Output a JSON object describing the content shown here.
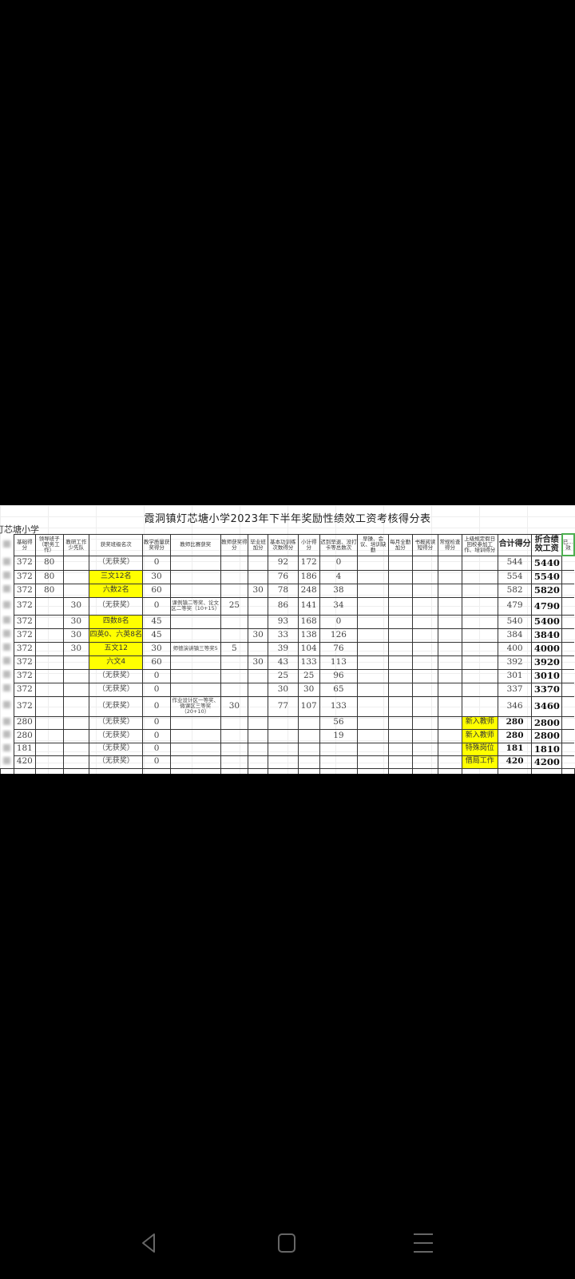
{
  "sheet": {
    "title": "霞洞镇灯芯塘小学2023年下半年奖励性绩效工资考核得分表",
    "school": "灯芯塘小学",
    "headers": [
      "",
      "基础得分",
      "领导班子（职务工作）",
      "教研工作少先队",
      "获奖班级名次",
      "教学质量获奖得分",
      "教师比赛获奖",
      "教师获奖得分",
      "毕业班加分",
      "基本功训练次数得分",
      "小计得分",
      "迟到早退、没打卡等总数次",
      "早操、会议、培训缺勤",
      "每月全勤加分",
      "书报阅读短得分",
      "常规检查得分",
      "上级规定假日回校参加工作、培训得分",
      "合计得分",
      "折合绩效工资",
      "已…效"
    ],
    "highlight_color": "#ffff00",
    "rows": [
      [
        "",
        "372",
        "80",
        "",
        "（无获奖）",
        "0",
        "",
        "",
        "",
        "92",
        "172",
        "0",
        "",
        "",
        "",
        "",
        "",
        "544",
        "5440",
        ""
      ],
      [
        "",
        "372",
        "80",
        "",
        "三文12名",
        "30",
        "",
        "",
        "",
        "76",
        "186",
        "4",
        "",
        "",
        "",
        "",
        "",
        "554",
        "5540",
        ""
      ],
      [
        "",
        "372",
        "80",
        "",
        "六数2名",
        "60",
        "",
        "",
        "30",
        "78",
        "248",
        "38",
        "",
        "",
        "",
        "",
        "",
        "582",
        "5820",
        ""
      ],
      [
        "",
        "372",
        "",
        "30",
        "（无获奖）",
        "0",
        "课例镇二等奖、论文区二等奖（10+15）",
        "25",
        "",
        "86",
        "141",
        "34",
        "",
        "",
        "",
        "",
        "",
        "479",
        "4790",
        ""
      ],
      [
        "",
        "372",
        "",
        "30",
        "四数8名",
        "45",
        "",
        "",
        "",
        "93",
        "168",
        "0",
        "",
        "",
        "",
        "",
        "",
        "540",
        "5400",
        ""
      ],
      [
        "",
        "372",
        "",
        "30",
        "四英0、六英8名",
        "45",
        "",
        "",
        "30",
        "33",
        "138",
        "126",
        "",
        "",
        "",
        "",
        "",
        "384",
        "3840",
        ""
      ],
      [
        "",
        "372",
        "",
        "30",
        "五文12",
        "30",
        "师德演讲镇三等奖5",
        "5",
        "",
        "39",
        "104",
        "76",
        "",
        "",
        "",
        "",
        "",
        "400",
        "4000",
        ""
      ],
      [
        "",
        "372",
        "",
        "",
        "六文4",
        "60",
        "",
        "",
        "30",
        "43",
        "133",
        "113",
        "",
        "",
        "",
        "",
        "",
        "392",
        "3920",
        ""
      ],
      [
        "",
        "372",
        "",
        "",
        "（无获奖）",
        "0",
        "",
        "",
        "",
        "25",
        "25",
        "96",
        "",
        "",
        "",
        "",
        "",
        "301",
        "3010",
        ""
      ],
      [
        "",
        "372",
        "",
        "",
        "（无获奖）",
        "0",
        "",
        "",
        "",
        "30",
        "30",
        "65",
        "",
        "",
        "",
        "",
        "",
        "337",
        "3370",
        ""
      ],
      [
        "",
        "372",
        "",
        "",
        "（无获奖）",
        "0",
        "作业设计区一等奖、微课区三等奖（20+10）",
        "30",
        "",
        "77",
        "107",
        "133",
        "",
        "",
        "",
        "",
        "",
        "346",
        "3460",
        ""
      ],
      [
        "",
        "280",
        "",
        "",
        "（无获奖）",
        "0",
        "",
        "",
        "",
        "",
        "",
        "56",
        "",
        "",
        "",
        "",
        "新入教师",
        "280",
        "2800",
        ""
      ],
      [
        "",
        "280",
        "",
        "",
        "（无获奖）",
        "0",
        "",
        "",
        "",
        "",
        "",
        "19",
        "",
        "",
        "",
        "",
        "新入教师",
        "280",
        "2800",
        ""
      ],
      [
        "",
        "181",
        "",
        "",
        "（无获奖）",
        "0",
        "",
        "",
        "",
        "",
        "",
        "",
        "",
        "",
        "",
        "",
        "特殊岗位",
        "181",
        "1810",
        ""
      ],
      [
        "",
        "420",
        "",
        "",
        "（无获奖）",
        "0",
        "",
        "",
        "",
        "",
        "",
        "",
        "",
        "",
        "",
        "",
        "借局工作",
        "420",
        "4200",
        ""
      ]
    ],
    "highlighted_award_rows": [
      1,
      2,
      4,
      5,
      6,
      7
    ],
    "highlighted_note_rows": [
      11,
      12,
      13,
      14
    ]
  },
  "navbar": {
    "icons": [
      "back-icon",
      "home-icon",
      "recents-icon"
    ],
    "color": "#666666"
  }
}
